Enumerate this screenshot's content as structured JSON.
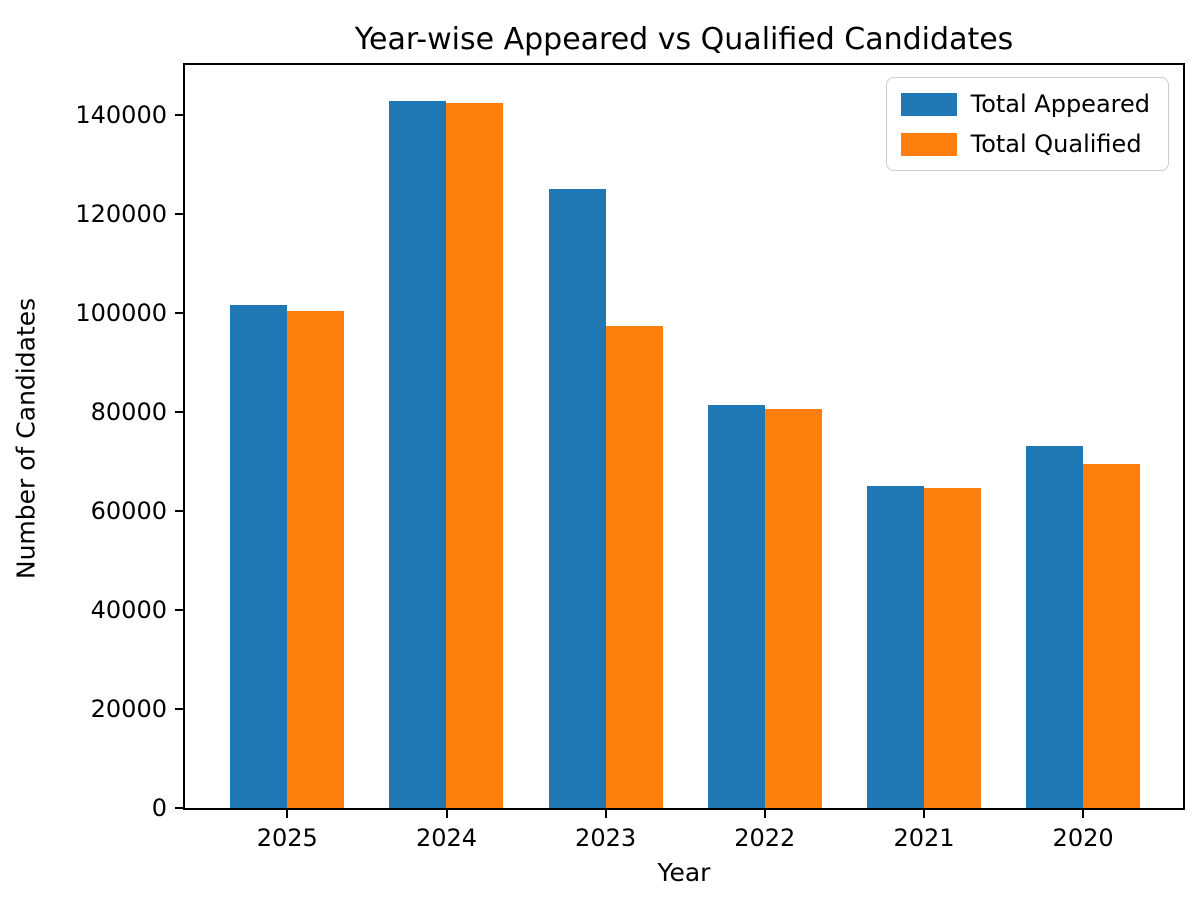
{
  "chart_data": {
    "type": "bar",
    "title": "Year-wise Appeared vs Qualified Candidates",
    "xlabel": "Year",
    "ylabel": "Number of Candidates",
    "categories": [
      "2025",
      "2024",
      "2023",
      "2022",
      "2021",
      "2020"
    ],
    "series": [
      {
        "name": "Total Appeared",
        "color": "#1f77b4",
        "values": [
          101500,
          142800,
          124900,
          81400,
          65100,
          73100
        ]
      },
      {
        "name": "Total Qualified",
        "color": "#ff7f0e",
        "values": [
          100300,
          142400,
          97300,
          80600,
          64700,
          69500
        ]
      }
    ],
    "ylim": [
      0,
      150000
    ],
    "yticks": [
      0,
      20000,
      40000,
      60000,
      80000,
      100000,
      120000,
      140000
    ],
    "ytick_labels": [
      "0",
      "20000",
      "40000",
      "60000",
      "80000",
      "100000",
      "120000",
      "140000"
    ],
    "legend_position": "upper right",
    "grid": false,
    "colors": {
      "axis": "#000000",
      "legend_border": "#cccccc",
      "background": "#ffffff"
    }
  }
}
